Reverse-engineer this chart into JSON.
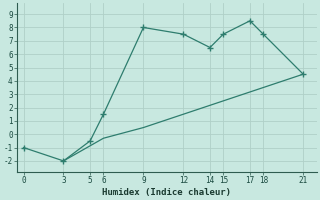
{
  "xlabel": "Humidex (Indice chaleur)",
  "line1_x": [
    0,
    3,
    5,
    6,
    9,
    12,
    14,
    15,
    17,
    18,
    21
  ],
  "line1_y": [
    -1,
    -2,
    -0.5,
    1.5,
    8,
    7.5,
    6.5,
    7.5,
    8.5,
    7.5,
    4.5
  ],
  "line2_x": [
    3,
    6,
    9,
    12,
    15,
    18,
    21
  ],
  "line2_y": [
    -2,
    -0.3,
    0.5,
    1.5,
    2.5,
    3.5,
    4.5
  ],
  "line_color": "#2e7d6e",
  "bg_color": "#c8e8e0",
  "grid_color_major": "#b0d0c8",
  "grid_color_minor": "#c0dcd4",
  "xlim": [
    -0.5,
    22
  ],
  "ylim": [
    -2.8,
    9.8
  ],
  "xticks": [
    0,
    3,
    5,
    6,
    9,
    12,
    14,
    15,
    17,
    18,
    21
  ],
  "yticks": [
    -2,
    -1,
    0,
    1,
    2,
    3,
    4,
    5,
    6,
    7,
    8,
    9
  ],
  "tick_fontsize": 5.5,
  "xlabel_fontsize": 6.5
}
